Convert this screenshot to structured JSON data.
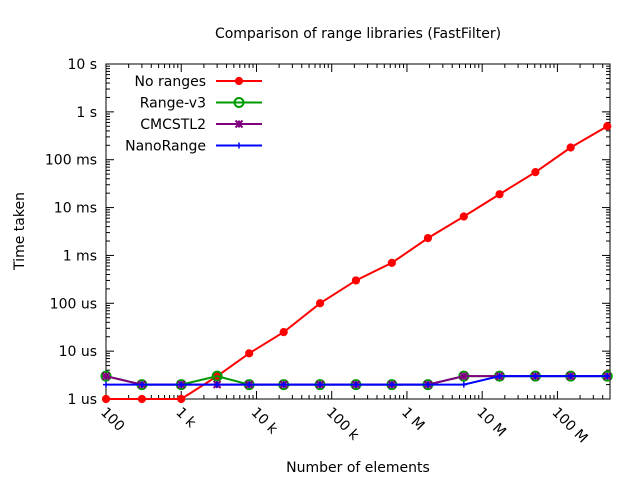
{
  "chart_data": {
    "type": "line",
    "title": "Comparison of range libraries (FastFilter)",
    "xlabel": "Number of elements",
    "ylabel": "Time taken",
    "x_scale": "log",
    "y_scale": "log",
    "xlim": [
      100,
      500000000
    ],
    "ylim": [
      1e-06,
      10
    ],
    "x_ticks": [
      {
        "value": 100,
        "label": "100"
      },
      {
        "value": 1000,
        "label": "1 k"
      },
      {
        "value": 10000,
        "label": "10 k"
      },
      {
        "value": 100000,
        "label": "100 k"
      },
      {
        "value": 1000000,
        "label": "1 M"
      },
      {
        "value": 10000000,
        "label": "10 M"
      },
      {
        "value": 100000000,
        "label": "100 M"
      }
    ],
    "y_ticks": [
      {
        "value": 1e-06,
        "label": "1 us"
      },
      {
        "value": 1e-05,
        "label": "10 us"
      },
      {
        "value": 0.0001,
        "label": "100 us"
      },
      {
        "value": 0.001,
        "label": "1 ms"
      },
      {
        "value": 0.01,
        "label": "10 ms"
      },
      {
        "value": 0.1,
        "label": "100 ms"
      },
      {
        "value": 1,
        "label": "1  s"
      },
      {
        "value": 10,
        "label": "10  s"
      }
    ],
    "grid": false,
    "legend_position": "top-left",
    "series": [
      {
        "name": "No ranges",
        "color": "#ff0000",
        "marker": "filled-circle",
        "x": [
          100,
          300,
          1000,
          3000,
          8000,
          23000,
          70000,
          210000,
          630000,
          1900000,
          5700000,
          17000000,
          51000000,
          150000000,
          460000000
        ],
        "y": [
          1e-06,
          1e-06,
          1e-06,
          3e-06,
          9e-06,
          2.5e-05,
          0.0001,
          0.0003,
          0.0007,
          0.0023,
          0.0065,
          0.019,
          0.055,
          0.18,
          0.5
        ]
      },
      {
        "name": "Range-v3",
        "color": "#009900",
        "marker": "open-circle",
        "x": [
          100,
          300,
          1000,
          3000,
          8000,
          23000,
          70000,
          210000,
          630000,
          1900000,
          5700000,
          17000000,
          51000000,
          150000000,
          460000000
        ],
        "y": [
          3e-06,
          2e-06,
          2e-06,
          3e-06,
          2e-06,
          2e-06,
          2e-06,
          2e-06,
          2e-06,
          2e-06,
          3e-06,
          3e-06,
          3e-06,
          3e-06,
          3e-06
        ]
      },
      {
        "name": "CMCSTL2",
        "color": "#800080",
        "marker": "star",
        "x": [
          100,
          300,
          1000,
          3000,
          8000,
          23000,
          70000,
          210000,
          630000,
          1900000,
          5700000,
          17000000,
          51000000,
          150000000,
          460000000
        ],
        "y": [
          3e-06,
          2e-06,
          2e-06,
          2e-06,
          2e-06,
          2e-06,
          2e-06,
          2e-06,
          2e-06,
          2e-06,
          3e-06,
          3e-06,
          3e-06,
          3e-06,
          3e-06
        ]
      },
      {
        "name": "NanoRange",
        "color": "#0000ff",
        "marker": "plus",
        "x": [
          100,
          300,
          1000,
          3000,
          8000,
          23000,
          70000,
          210000,
          630000,
          1900000,
          5700000,
          17000000,
          51000000,
          150000000,
          460000000
        ],
        "y": [
          2e-06,
          2e-06,
          2e-06,
          2e-06,
          2e-06,
          2e-06,
          2e-06,
          2e-06,
          2e-06,
          2e-06,
          2e-06,
          3e-06,
          3e-06,
          3e-06,
          3e-06
        ]
      }
    ]
  }
}
